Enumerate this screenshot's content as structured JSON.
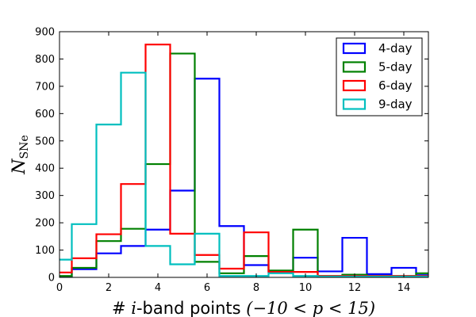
{
  "chart_data": {
    "type": "histogram-step",
    "xlabel_prefix": "# ",
    "xlabel_var": "i",
    "xlabel_mid": "-band points ",
    "xlabel_math": "(−10 < p < 15)",
    "ylabel_main": "N",
    "ylabel_sub": "SNe",
    "xlim": [
      0,
      15
    ],
    "ylim": [
      0,
      900
    ],
    "xticks": [
      0,
      2,
      4,
      6,
      8,
      10,
      12,
      14
    ],
    "yticks": [
      0,
      100,
      200,
      300,
      400,
      500,
      600,
      700,
      800,
      900
    ],
    "bin_edges": [
      -0.5,
      0.5,
      1.5,
      2.5,
      3.5,
      4.5,
      5.5,
      6.5,
      7.5,
      8.5,
      9.5,
      10.5,
      11.5,
      12.5,
      13.5,
      14.5,
      15.5
    ],
    "legend_position": "top-right",
    "series": [
      {
        "name": "4-day",
        "color": "#0000ff",
        "values": [
          0,
          30,
          88,
          115,
          175,
          318,
          728,
          188,
          45,
          20,
          72,
          22,
          145,
          12,
          35,
          8
        ]
      },
      {
        "name": "5-day",
        "color": "#008000",
        "values": [
          5,
          35,
          133,
          178,
          415,
          820,
          57,
          15,
          78,
          25,
          175,
          5,
          10,
          5,
          5,
          15
        ]
      },
      {
        "name": "6-day",
        "color": "#ff0000",
        "values": [
          18,
          70,
          158,
          342,
          853,
          160,
          82,
          32,
          165,
          20,
          20,
          5,
          5,
          5,
          5,
          5
        ]
      },
      {
        "name": "9-day",
        "color": "#00bfbf",
        "values": [
          65,
          195,
          560,
          750,
          115,
          48,
          160,
          5,
          5,
          15,
          5,
          3,
          3,
          3,
          3,
          3
        ]
      }
    ]
  }
}
